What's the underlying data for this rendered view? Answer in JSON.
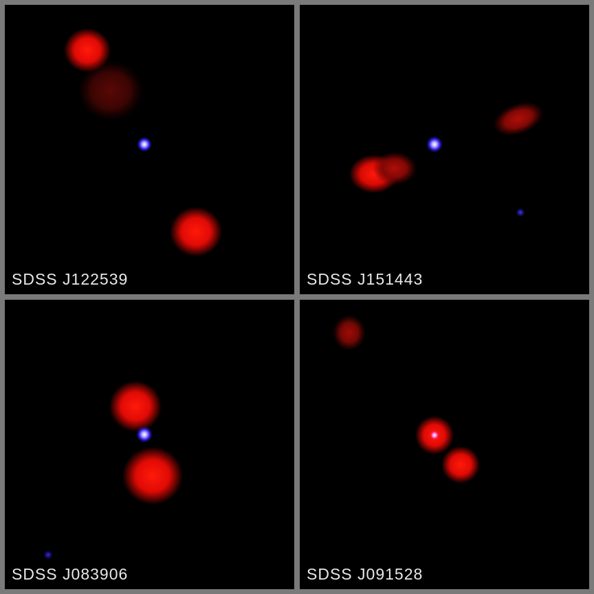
{
  "panels": [
    {
      "label": "SDSS J122539"
    },
    {
      "label": "SDSS J151443"
    },
    {
      "label": "SDSS J083906"
    },
    {
      "label": "SDSS J091528"
    }
  ],
  "colors": {
    "background": "#000000",
    "frame": "#7a7a7a",
    "radio_lobe": "#ff1a0a",
    "xray_source": "#5a3cff",
    "label_text": "#e8e8e8"
  }
}
